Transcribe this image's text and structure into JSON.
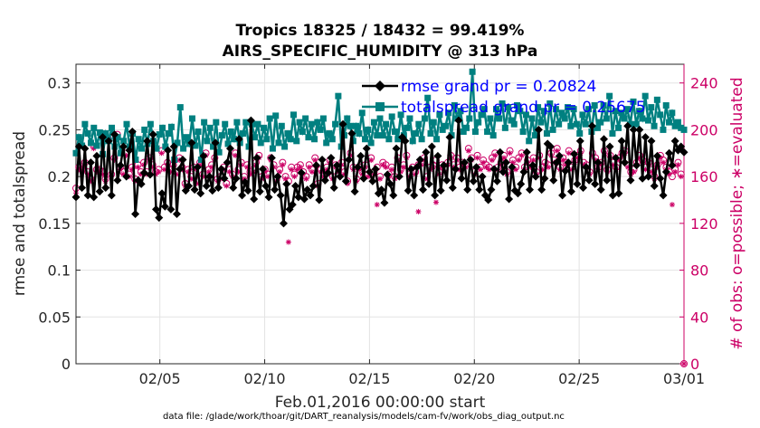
{
  "chart_data": {
    "type": "line",
    "title": [
      "Tropics 18325 / 18432 = 99.419%",
      "AIRS_SPECIFIC_HUMIDITY @ 313 hPa"
    ],
    "xlabel": "Feb.01,2016 00:00:00 start",
    "ylabel_left": "rmse and totalspread",
    "ylabel_right": "# of obs: o=possible; ∗=evaluated",
    "footer": "data file: /glade/work/thoar/git/DART_reanalysis/models/cam-fv/work/obs_diag_output.nc",
    "x_unit": "day of February 2016 (1 = Feb 01 00:00)",
    "xlim": [
      1,
      30
    ],
    "x_ticks": [
      5,
      10,
      15,
      20,
      25,
      30
    ],
    "x_tick_labels": [
      "02/05",
      "02/10",
      "02/15",
      "02/20",
      "02/25",
      "03/01"
    ],
    "ylim_left": [
      0,
      0.32
    ],
    "y_ticks_left": [
      0,
      0.05,
      0.1,
      0.15,
      0.2,
      0.25,
      0.3
    ],
    "y_tick_labels_left": [
      "0",
      "0.05",
      "0.1",
      "0.15",
      "0.2",
      "0.25",
      "0.3"
    ],
    "ylim_right": [
      0,
      256
    ],
    "y_ticks_right": [
      0,
      40,
      80,
      120,
      160,
      200,
      240
    ],
    "y_tick_labels_right": [
      "0",
      "40",
      "80",
      "120",
      "160",
      "200",
      "240"
    ],
    "grid": true,
    "legend_position": "top-right",
    "colors": {
      "rmse": "#000000",
      "totalspread": "#008080",
      "obs_count": "#cc0066",
      "legend_text": "#0000ff",
      "right_axis": "#cc0066"
    },
    "series": [
      {
        "name": "rmse grand pr = 0.20824",
        "key": "rmse",
        "axis": "left",
        "marker": "diamond",
        "values": [
          0.178,
          0.232,
          0.188,
          0.23,
          0.18,
          0.215,
          0.178,
          0.222,
          0.184,
          0.242,
          0.188,
          0.238,
          0.18,
          0.245,
          0.196,
          0.212,
          0.232,
          0.2,
          0.228,
          0.248,
          0.16,
          0.196,
          0.192,
          0.204,
          0.238,
          0.202,
          0.245,
          0.165,
          0.156,
          0.182,
          0.168,
          0.228,
          0.165,
          0.232,
          0.16,
          0.208,
          0.218,
          0.185,
          0.19,
          0.236,
          0.186,
          0.21,
          0.182,
          0.222,
          0.19,
          0.2,
          0.185,
          0.236,
          0.188,
          0.208,
          0.198,
          0.215,
          0.23,
          0.188,
          0.198,
          0.24,
          0.18,
          0.194,
          0.185,
          0.26,
          0.176,
          0.22,
          0.184,
          0.208,
          0.19,
          0.178,
          0.22,
          0.186,
          0.2,
          0.18,
          0.15,
          0.192,
          0.165,
          0.17,
          0.19,
          0.178,
          0.204,
          0.176,
          0.186,
          0.18,
          0.19,
          0.212,
          0.175,
          0.218,
          0.196,
          0.204,
          0.22,
          0.188,
          0.212,
          0.2,
          0.256,
          0.195,
          0.218,
          0.246,
          0.184,
          0.21,
          0.222,
          0.198,
          0.23,
          0.205,
          0.195,
          0.208,
          0.182,
          0.186,
          0.172,
          0.202,
          0.192,
          0.18,
          0.23,
          0.2,
          0.242,
          0.238,
          0.185,
          0.208,
          0.18,
          0.21,
          0.218,
          0.186,
          0.226,
          0.192,
          0.232,
          0.18,
          0.222,
          0.185,
          0.212,
          0.196,
          0.242,
          0.188,
          0.208,
          0.26,
          0.198,
          0.215,
          0.186,
          0.218,
          0.195,
          0.21,
          0.186,
          0.2,
          0.18,
          0.175,
          0.186,
          0.208,
          0.195,
          0.226,
          0.205,
          0.215,
          0.176,
          0.21,
          0.185,
          0.182,
          0.192,
          0.205,
          0.226,
          0.186,
          0.212,
          0.2,
          0.25,
          0.186,
          0.198,
          0.235,
          0.232,
          0.196,
          0.215,
          0.222,
          0.18,
          0.206,
          0.215,
          0.184,
          0.224,
          0.192,
          0.238,
          0.188,
          0.21,
          0.196,
          0.254,
          0.192,
          0.215,
          0.186,
          0.24,
          0.196,
          0.232,
          0.18,
          0.22,
          0.182,
          0.238,
          0.215,
          0.254,
          0.196,
          0.25,
          0.212,
          0.25,
          0.198,
          0.242,
          0.2,
          0.238,
          0.19,
          0.222,
          0.198,
          0.18,
          0.205,
          0.225,
          0.212,
          0.238,
          0.228,
          0.232,
          0.226
        ]
      },
      {
        "name": "totalspread grand pr = 0.25675",
        "key": "totalspread",
        "axis": "left",
        "marker": "square",
        "values": [
          0.225,
          0.242,
          0.233,
          0.256,
          0.246,
          0.236,
          0.252,
          0.233,
          0.247,
          0.224,
          0.246,
          0.238,
          0.252,
          0.232,
          0.242,
          0.225,
          0.238,
          0.256,
          0.232,
          0.246,
          0.218,
          0.24,
          0.23,
          0.25,
          0.235,
          0.256,
          0.238,
          0.23,
          0.245,
          0.252,
          0.232,
          0.246,
          0.253,
          0.218,
          0.236,
          0.274,
          0.23,
          0.242,
          0.235,
          0.262,
          0.233,
          0.248,
          0.218,
          0.258,
          0.238,
          0.252,
          0.232,
          0.258,
          0.226,
          0.244,
          0.256,
          0.235,
          0.248,
          0.24,
          0.258,
          0.236,
          0.246,
          0.258,
          0.232,
          0.256,
          0.242,
          0.256,
          0.236,
          0.252,
          0.24,
          0.262,
          0.23,
          0.265,
          0.236,
          0.254,
          0.232,
          0.246,
          0.24,
          0.266,
          0.238,
          0.258,
          0.248,
          0.262,
          0.242,
          0.256,
          0.24,
          0.258,
          0.25,
          0.262,
          0.236,
          0.246,
          0.24,
          0.256,
          0.286,
          0.232,
          0.244,
          0.262,
          0.254,
          0.238,
          0.254,
          0.246,
          0.268,
          0.24,
          0.25,
          0.236,
          0.258,
          0.244,
          0.262,
          0.244,
          0.256,
          0.24,
          0.264,
          0.248,
          0.24,
          0.266,
          0.244,
          0.252,
          0.262,
          0.238,
          0.246,
          0.256,
          0.24,
          0.262,
          0.284,
          0.246,
          0.258,
          0.24,
          0.266,
          0.25,
          0.254,
          0.268,
          0.244,
          0.276,
          0.262,
          0.27,
          0.248,
          0.252,
          0.262,
          0.312,
          0.248,
          0.258,
          0.266,
          0.272,
          0.248,
          0.262,
          0.244,
          0.272,
          0.262,
          0.278,
          0.252,
          0.274,
          0.26,
          0.256,
          0.276,
          0.27,
          0.248,
          0.266,
          0.238,
          0.262,
          0.244,
          0.274,
          0.258,
          0.27,
          0.246,
          0.278,
          0.25,
          0.272,
          0.256,
          0.268,
          0.262,
          0.274,
          0.254,
          0.272,
          0.256,
          0.246,
          0.266,
          0.256,
          0.272,
          0.248,
          0.276,
          0.252,
          0.258,
          0.276,
          0.262,
          0.286,
          0.246,
          0.27,
          0.252,
          0.268,
          0.262,
          0.272,
          0.256,
          0.28,
          0.256,
          0.27,
          0.262,
          0.286,
          0.26,
          0.274,
          0.254,
          0.282,
          0.266,
          0.25,
          0.276,
          0.258,
          0.268,
          0.254,
          0.258,
          0.252,
          0.25
        ]
      },
      {
        "name": "# of obs possible",
        "key": "obs_possible",
        "axis": "right",
        "marker": "circle",
        "values": [
          150,
          168,
          166,
          172,
          164,
          158,
          186,
          166,
          166,
          164,
          158,
          192,
          162,
          176,
          196,
          168,
          164,
          180,
          162,
          168,
          158,
          170,
          164,
          172,
          164,
          176,
          170,
          164,
          166,
          182,
          168,
          172,
          166,
          170,
          164,
          176,
          168,
          154,
          166,
          160,
          168,
          156,
          172,
          162,
          180,
          166,
          170,
          176,
          158,
          160,
          168,
          154,
          166,
          162,
          180,
          166,
          172,
          160,
          170,
          164,
          166,
          172,
          178,
          160,
          166,
          162,
          176,
          170,
          158,
          166,
          172,
          160,
          156,
          168,
          162,
          168,
          170,
          164,
          160,
          170,
          166,
          176,
          154,
          166,
          162,
          168,
          174,
          160,
          170,
          166,
          172,
          164,
          156,
          180,
          168,
          158,
          168,
          164,
          170,
          162,
          176,
          164,
          168,
          160,
          172,
          170,
          162,
          168,
          160,
          176,
          166,
          170,
          178,
          162,
          168,
          164,
          170,
          172,
          176,
          160,
          168,
          170,
          174,
          164,
          170,
          166,
          172,
          178,
          170,
          176,
          168,
          172,
          170,
          184,
          176,
          164,
          178,
          168,
          174,
          170,
          168,
          176,
          180,
          168,
          172,
          178,
          164,
          182,
          174,
          168,
          176,
          180,
          168,
          174,
          170,
          176,
          164,
          178,
          168,
          172,
          170,
          180,
          174,
          184,
          168,
          176,
          172,
          182,
          168,
          174,
          178,
          182,
          172,
          170,
          164,
          180,
          176,
          168,
          172,
          182,
          166,
          178,
          172,
          168,
          176,
          180,
          182,
          170,
          164,
          166,
          172,
          178,
          174,
          168,
          172,
          166,
          160,
          170,
          178,
          174,
          168,
          164,
          160,
          166,
          172,
          162,
          0
        ]
      },
      {
        "name": "# of obs evaluated",
        "key": "obs_evaluated",
        "axis": "right",
        "marker": "asterisk",
        "values": [
          146,
          166,
          164,
          170,
          162,
          156,
          184,
          164,
          164,
          162,
          156,
          190,
          160,
          174,
          194,
          166,
          162,
          178,
          160,
          166,
          156,
          168,
          162,
          170,
          162,
          174,
          168,
          162,
          164,
          180,
          166,
          170,
          164,
          168,
          162,
          174,
          166,
          152,
          164,
          158,
          166,
          154,
          170,
          160,
          178,
          164,
          168,
          174,
          156,
          158,
          166,
          152,
          164,
          160,
          178,
          164,
          170,
          158,
          168,
          162,
          164,
          170,
          176,
          158,
          164,
          160,
          174,
          168,
          156,
          164,
          170,
          158,
          104,
          166,
          160,
          166,
          168,
          162,
          158,
          168,
          164,
          174,
          152,
          164,
          160,
          166,
          172,
          158,
          168,
          164,
          170,
          162,
          154,
          178,
          166,
          156,
          166,
          162,
          168,
          160,
          174,
          162,
          136,
          158,
          170,
          168,
          160,
          166,
          158,
          174,
          164,
          168,
          176,
          160,
          166,
          162,
          130,
          170,
          174,
          158,
          166,
          168,
          138,
          162,
          168,
          164,
          170,
          176,
          168,
          174,
          166,
          170,
          168,
          182,
          174,
          162,
          176,
          166,
          172,
          168,
          166,
          174,
          178,
          166,
          170,
          176,
          162,
          180,
          172,
          166,
          174,
          178,
          166,
          172,
          168,
          174,
          162,
          176,
          166,
          170,
          168,
          178,
          172,
          182,
          166,
          174,
          170,
          180,
          166,
          172,
          176,
          180,
          170,
          168,
          162,
          178,
          174,
          166,
          170,
          180,
          164,
          176,
          170,
          166,
          174,
          178,
          180,
          168,
          162,
          164,
          170,
          176,
          172,
          166,
          170,
          164,
          158,
          168,
          176,
          172,
          166,
          162,
          136,
          164,
          170,
          160,
          0
        ]
      }
    ]
  }
}
